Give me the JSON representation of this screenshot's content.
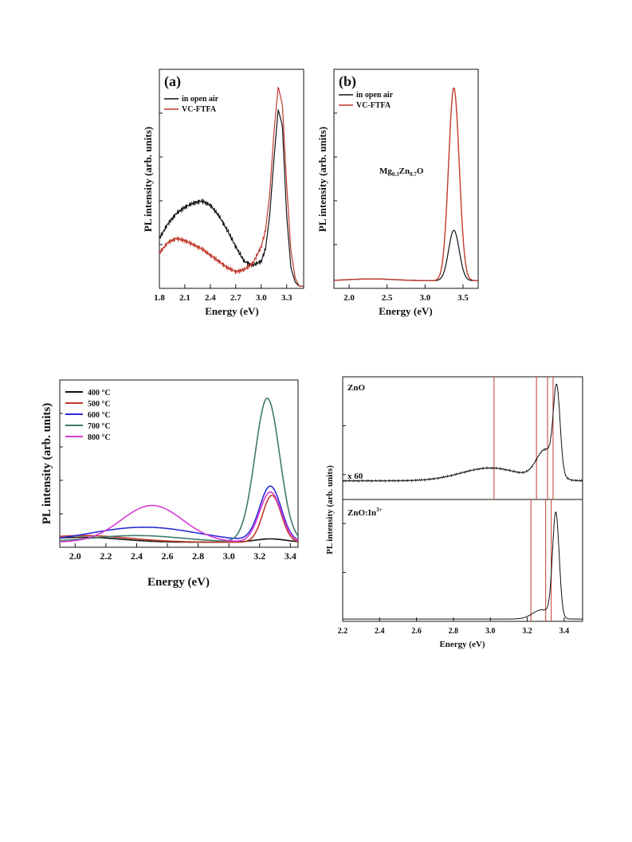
{
  "colors": {
    "black": "#111111",
    "red": "#c0392b",
    "blue": "#2b2bd6",
    "teal": "#3f7a6a",
    "magenta": "#d63ad6",
    "vline": "#c0392b"
  },
  "chart_data": [
    {
      "id": "a",
      "type": "line",
      "panel_label": "(a)",
      "xlabel": "Energy (eV)",
      "ylabel": "PL intensity (arb. units)",
      "xlim": [
        1.8,
        3.5
      ],
      "ylim": [
        0,
        1
      ],
      "xticks": [
        "1.8",
        "2.1",
        "2.4",
        "2.7",
        "3.0",
        "3.3"
      ],
      "legend_position": "top-left",
      "series": [
        {
          "name": "in open air",
          "color": "#111111",
          "x": [
            1.8,
            1.9,
            2.0,
            2.1,
            2.2,
            2.3,
            2.4,
            2.5,
            2.6,
            2.7,
            2.8,
            2.9,
            3.0,
            3.05,
            3.1,
            3.15,
            3.2,
            3.25,
            3.3,
            3.35,
            3.4,
            3.45
          ],
          "y": [
            0.24,
            0.31,
            0.36,
            0.39,
            0.41,
            0.42,
            0.4,
            0.35,
            0.28,
            0.2,
            0.13,
            0.11,
            0.13,
            0.19,
            0.35,
            0.62,
            0.86,
            0.78,
            0.35,
            0.1,
            0.03,
            0.01
          ]
        },
        {
          "name": "VC-FTFA",
          "color": "#c0392b",
          "x": [
            1.8,
            1.9,
            2.0,
            2.1,
            2.2,
            2.3,
            2.4,
            2.5,
            2.6,
            2.7,
            2.8,
            2.9,
            3.0,
            3.05,
            3.1,
            3.15,
            3.2,
            3.25,
            3.3,
            3.35,
            3.4,
            3.45
          ],
          "y": [
            0.17,
            0.22,
            0.24,
            0.23,
            0.21,
            0.19,
            0.16,
            0.13,
            0.1,
            0.08,
            0.09,
            0.12,
            0.2,
            0.28,
            0.45,
            0.75,
            0.97,
            0.88,
            0.5,
            0.18,
            0.05,
            0.01
          ]
        }
      ]
    },
    {
      "id": "b",
      "type": "line",
      "panel_label": "(b)",
      "xlabel": "Energy (eV)",
      "ylabel": "PL intensity (arb. units)",
      "annotation": "Mg0.3Zn0.7O",
      "xlim": [
        1.8,
        3.7
      ],
      "ylim": [
        0,
        1
      ],
      "xticks": [
        "2.0",
        "2.5",
        "3.0",
        "3.5"
      ],
      "legend_position": "top-left",
      "series": [
        {
          "name": "in open air",
          "color": "#111111",
          "x": [],
          "y": []
        },
        {
          "name": "VC-FTFA",
          "color": "#c0392b",
          "x": [],
          "y": []
        }
      ]
    },
    {
      "id": "c",
      "type": "line",
      "xlabel": "Energy (eV)",
      "ylabel": "PL intensity (arb. units)",
      "xlim": [
        1.9,
        3.45
      ],
      "ylim": [
        0,
        1
      ],
      "xticks": [
        "2.0",
        "2.2",
        "2.4",
        "2.6",
        "2.8",
        "3.0",
        "3.2",
        "3.4"
      ],
      "legend_position": "top-left",
      "series": [
        {
          "name": "400",
          "unit": "°C",
          "color": "#111111"
        },
        {
          "name": "500",
          "unit": "°C",
          "color": "#c0392b"
        },
        {
          "name": "600",
          "unit": "°C",
          "color": "#2b2bd6"
        },
        {
          "name": "700",
          "unit": "°C",
          "color": "#3f7a6a"
        },
        {
          "name": "800",
          "unit": "°C",
          "color": "#d63ad6"
        }
      ]
    },
    {
      "id": "d",
      "type": "line",
      "xlabel": "Energy (eV)",
      "ylabel": "PL intensity (arb. units)",
      "xlim": [
        2.2,
        3.5
      ],
      "xticks": [
        "2.2",
        "2.4",
        "2.6",
        "2.8",
        "3.0",
        "3.2",
        "3.4"
      ],
      "panels": [
        {
          "label": "ZnO",
          "note": "x 60",
          "vlines": [
            3.02,
            3.25,
            3.31,
            3.34
          ]
        },
        {
          "label": "ZnO:In",
          "label_sup": "3+",
          "vlines": [
            3.22,
            3.3,
            3.33
          ]
        }
      ]
    }
  ]
}
